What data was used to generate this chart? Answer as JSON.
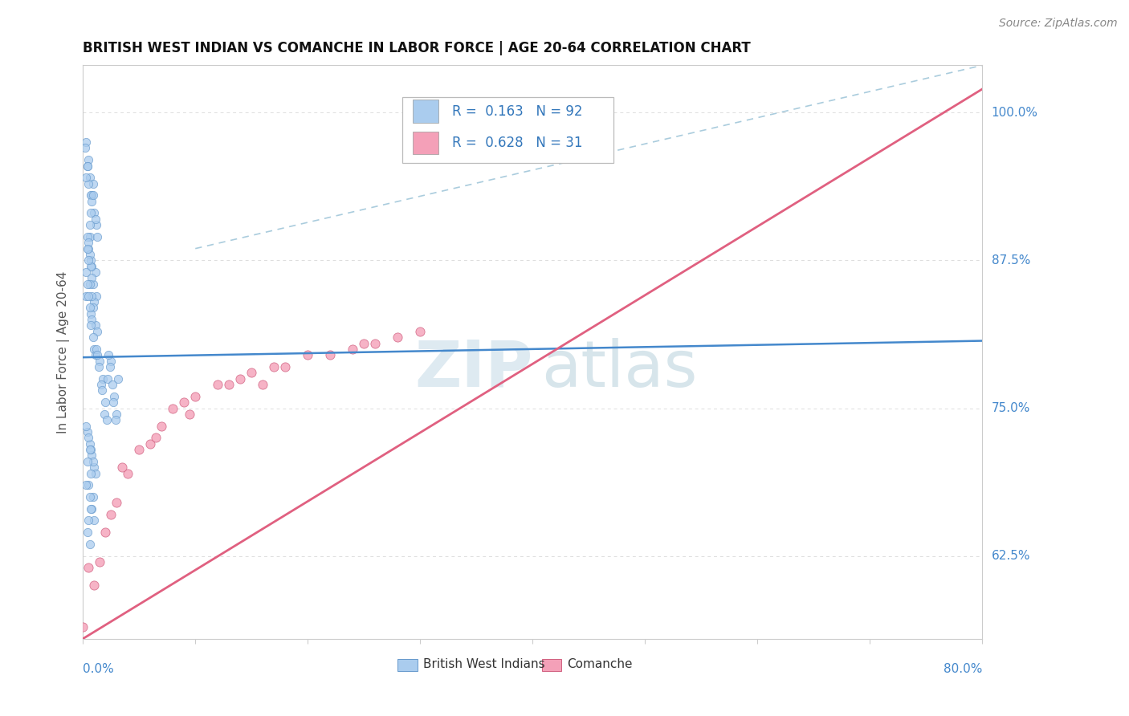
{
  "title": "BRITISH WEST INDIAN VS COMANCHE IN LABOR FORCE | AGE 20-64 CORRELATION CHART",
  "source": "Source: ZipAtlas.com",
  "ylabel": "In Labor Force | Age 20-64",
  "xlim": [
    0.0,
    0.8
  ],
  "ylim": [
    0.555,
    1.04
  ],
  "ytick_values": [
    0.625,
    0.75,
    0.875,
    1.0
  ],
  "ytick_labels": [
    "62.5%",
    "75.0%",
    "87.5%",
    "100.0%"
  ],
  "scatter_british": {
    "color": "#aaccee",
    "edge_color": "#6699cc",
    "x": [
      0.005,
      0.008,
      0.003,
      0.006,
      0.01,
      0.004,
      0.007,
      0.012,
      0.009,
      0.002,
      0.006,
      0.011,
      0.008,
      0.005,
      0.013,
      0.007,
      0.004,
      0.009,
      0.006,
      0.003,
      0.008,
      0.005,
      0.011,
      0.007,
      0.004,
      0.009,
      0.006,
      0.012,
      0.008,
      0.005,
      0.01,
      0.007,
      0.004,
      0.009,
      0.006,
      0.003,
      0.011,
      0.008,
      0.005,
      0.013,
      0.007,
      0.004,
      0.009,
      0.006,
      0.003,
      0.01,
      0.008,
      0.005,
      0.011,
      0.007,
      0.015,
      0.012,
      0.018,
      0.014,
      0.016,
      0.02,
      0.017,
      0.019,
      0.021,
      0.013,
      0.025,
      0.022,
      0.028,
      0.03,
      0.024,
      0.026,
      0.023,
      0.027,
      0.029,
      0.031,
      0.004,
      0.006,
      0.008,
      0.01,
      0.005,
      0.007,
      0.009,
      0.003,
      0.011,
      0.006,
      0.004,
      0.007,
      0.005,
      0.009,
      0.008,
      0.006,
      0.003,
      0.01,
      0.007,
      0.005,
      0.004,
      0.006
    ],
    "y": [
      0.96,
      0.93,
      0.975,
      0.945,
      0.915,
      0.955,
      0.93,
      0.905,
      0.94,
      0.97,
      0.895,
      0.91,
      0.925,
      0.94,
      0.895,
      0.915,
      0.955,
      0.93,
      0.905,
      0.945,
      0.87,
      0.885,
      0.865,
      0.875,
      0.895,
      0.855,
      0.88,
      0.845,
      0.86,
      0.89,
      0.84,
      0.87,
      0.885,
      0.835,
      0.855,
      0.865,
      0.82,
      0.845,
      0.875,
      0.815,
      0.83,
      0.855,
      0.81,
      0.835,
      0.845,
      0.8,
      0.825,
      0.845,
      0.795,
      0.82,
      0.79,
      0.8,
      0.775,
      0.785,
      0.77,
      0.755,
      0.765,
      0.745,
      0.74,
      0.795,
      0.79,
      0.775,
      0.76,
      0.745,
      0.785,
      0.77,
      0.795,
      0.755,
      0.74,
      0.775,
      0.73,
      0.72,
      0.71,
      0.7,
      0.725,
      0.715,
      0.705,
      0.735,
      0.695,
      0.715,
      0.705,
      0.695,
      0.685,
      0.675,
      0.665,
      0.675,
      0.685,
      0.655,
      0.665,
      0.655,
      0.645,
      0.635
    ]
  },
  "scatter_comanche": {
    "color": "#f4a0b8",
    "edge_color": "#d06080",
    "x": [
      0.0,
      0.01,
      0.015,
      0.02,
      0.025,
      0.03,
      0.04,
      0.05,
      0.06,
      0.07,
      0.08,
      0.09,
      0.1,
      0.12,
      0.14,
      0.15,
      0.16,
      0.18,
      0.2,
      0.22,
      0.24,
      0.26,
      0.28,
      0.3,
      0.005,
      0.035,
      0.065,
      0.095,
      0.13,
      0.17,
      0.25
    ],
    "y": [
      0.565,
      0.6,
      0.62,
      0.645,
      0.66,
      0.67,
      0.695,
      0.715,
      0.72,
      0.735,
      0.75,
      0.755,
      0.76,
      0.77,
      0.775,
      0.78,
      0.77,
      0.785,
      0.795,
      0.795,
      0.8,
      0.805,
      0.81,
      0.815,
      0.615,
      0.7,
      0.725,
      0.745,
      0.77,
      0.785,
      0.805
    ]
  },
  "blue_line": {
    "x0": 0.0,
    "x1": 0.8,
    "y0": 0.793,
    "y1": 0.807
  },
  "pink_line": {
    "x0": 0.0,
    "x1": 0.8,
    "y0": 0.555,
    "y1": 1.02
  },
  "dashed_line": {
    "x0": 0.1,
    "x1": 0.8,
    "y0": 0.885,
    "y1": 1.04
  },
  "blue_line_color": "#4488cc",
  "pink_line_color": "#e06080",
  "dashed_line_color": "#aaccdd",
  "watermark_zip_color": "#c8dce8",
  "watermark_atlas_color": "#b0ccd8",
  "legend_colors": [
    "#aaccee",
    "#f4a0b8"
  ],
  "legend_texts": [
    "R =  0.163   N = 92",
    "R =  0.628   N = 31"
  ],
  "bottom_legend": [
    {
      "color": "#aaccee",
      "edge": "#6699cc",
      "label": "British West Indians"
    },
    {
      "color": "#f4a0b8",
      "edge": "#d06080",
      "label": "Comanche"
    }
  ]
}
